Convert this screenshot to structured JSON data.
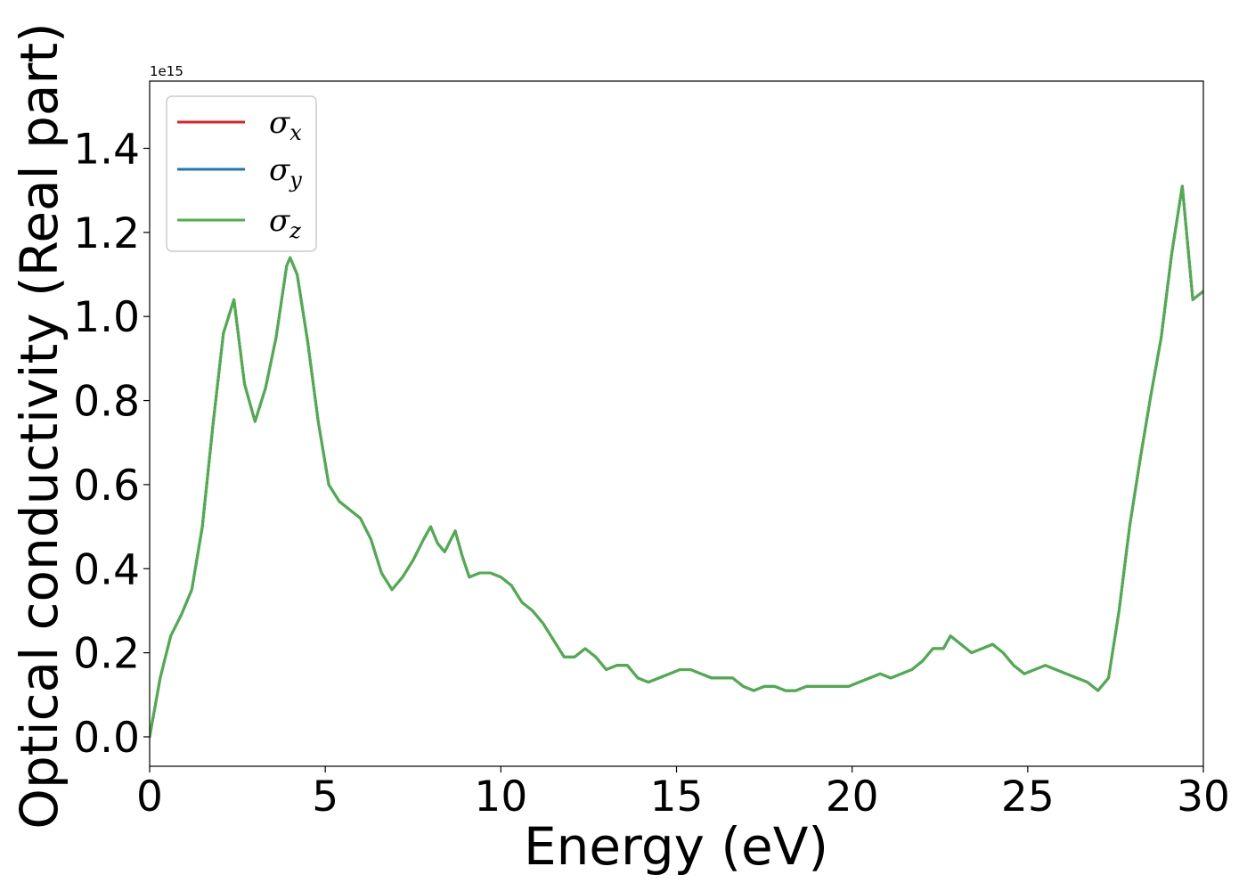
{
  "chart_data": {
    "type": "line",
    "xlabel": "Energy (eV)",
    "ylabel": "Optical conductivity (Real part)",
    "y_offset_label": "1e15",
    "xlim": [
      0,
      30
    ],
    "ylim": [
      -0.07,
      1.56
    ],
    "x_ticks": [
      0,
      5,
      10,
      15,
      20,
      25,
      30
    ],
    "x_tick_labels": [
      "0",
      "5",
      "10",
      "15",
      "20",
      "25",
      "30"
    ],
    "y_ticks": [
      0.0,
      0.2,
      0.4,
      0.6,
      0.8,
      1.0,
      1.2,
      1.4
    ],
    "y_tick_labels": [
      "0.0",
      "0.2",
      "0.4",
      "0.6",
      "0.8",
      "1.0",
      "1.2",
      "1.4"
    ],
    "grid": false,
    "legend_position": "top-left",
    "x": [
      0,
      0.3,
      0.6,
      0.9,
      1.2,
      1.5,
      1.8,
      2.1,
      2.4,
      2.7,
      3.0,
      3.3,
      3.6,
      3.9,
      4.0,
      4.2,
      4.5,
      4.8,
      5.1,
      5.4,
      5.7,
      6.0,
      6.3,
      6.6,
      6.9,
      7.2,
      7.5,
      7.8,
      8.0,
      8.2,
      8.4,
      8.7,
      8.9,
      9.1,
      9.4,
      9.7,
      10.0,
      10.3,
      10.6,
      10.9,
      11.2,
      11.5,
      11.8,
      12.1,
      12.4,
      12.7,
      13.0,
      13.3,
      13.6,
      13.9,
      14.2,
      14.5,
      14.8,
      15.1,
      15.4,
      15.7,
      16.0,
      16.3,
      16.6,
      16.9,
      17.2,
      17.5,
      17.8,
      18.1,
      18.4,
      18.7,
      19.0,
      19.3,
      19.6,
      19.9,
      20.2,
      20.5,
      20.8,
      21.1,
      21.4,
      21.7,
      22.0,
      22.3,
      22.6,
      22.8,
      23.1,
      23.4,
      23.7,
      24.0,
      24.3,
      24.6,
      24.9,
      25.2,
      25.5,
      25.8,
      26.1,
      26.4,
      26.7,
      27.0,
      27.3,
      27.6,
      27.9,
      28.2,
      28.5,
      28.8,
      29.1,
      29.4,
      29.7,
      30.0
    ],
    "series": [
      {
        "name": "σx",
        "color": "#d62728",
        "values": [
          0.0,
          0.14,
          0.24,
          0.29,
          0.35,
          0.5,
          0.74,
          0.96,
          1.04,
          0.84,
          0.75,
          0.83,
          0.95,
          1.12,
          1.14,
          1.1,
          0.94,
          0.75,
          0.6,
          0.56,
          0.54,
          0.52,
          0.47,
          0.39,
          0.35,
          0.38,
          0.42,
          0.47,
          0.5,
          0.46,
          0.44,
          0.49,
          0.43,
          0.38,
          0.39,
          0.39,
          0.38,
          0.36,
          0.32,
          0.3,
          0.27,
          0.23,
          0.19,
          0.19,
          0.21,
          0.19,
          0.16,
          0.17,
          0.17,
          0.14,
          0.13,
          0.14,
          0.15,
          0.16,
          0.16,
          0.15,
          0.14,
          0.14,
          0.14,
          0.12,
          0.11,
          0.12,
          0.12,
          0.11,
          0.11,
          0.12,
          0.12,
          0.12,
          0.12,
          0.12,
          0.13,
          0.14,
          0.15,
          0.14,
          0.15,
          0.16,
          0.18,
          0.21,
          0.21,
          0.24,
          0.22,
          0.2,
          0.21,
          0.22,
          0.2,
          0.17,
          0.15,
          0.16,
          0.17,
          0.16,
          0.15,
          0.14,
          0.13,
          0.11,
          0.14,
          0.3,
          0.5,
          0.66,
          0.81,
          0.95,
          1.15,
          1.31,
          1.04,
          1.06
        ]
      },
      {
        "name": "σy",
        "color": "#1f77b4",
        "values": [
          0.0,
          0.14,
          0.24,
          0.29,
          0.35,
          0.5,
          0.74,
          0.96,
          1.04,
          0.84,
          0.75,
          0.83,
          0.95,
          1.12,
          1.14,
          1.1,
          0.94,
          0.75,
          0.6,
          0.56,
          0.54,
          0.52,
          0.47,
          0.39,
          0.35,
          0.38,
          0.42,
          0.47,
          0.5,
          0.46,
          0.44,
          0.49,
          0.43,
          0.38,
          0.39,
          0.39,
          0.38,
          0.36,
          0.32,
          0.3,
          0.27,
          0.23,
          0.19,
          0.19,
          0.21,
          0.19,
          0.16,
          0.17,
          0.17,
          0.14,
          0.13,
          0.14,
          0.15,
          0.16,
          0.16,
          0.15,
          0.14,
          0.14,
          0.14,
          0.12,
          0.11,
          0.12,
          0.12,
          0.11,
          0.11,
          0.12,
          0.12,
          0.12,
          0.12,
          0.12,
          0.13,
          0.14,
          0.15,
          0.14,
          0.15,
          0.16,
          0.18,
          0.21,
          0.21,
          0.24,
          0.22,
          0.2,
          0.21,
          0.22,
          0.2,
          0.17,
          0.15,
          0.16,
          0.17,
          0.16,
          0.15,
          0.14,
          0.13,
          0.11,
          0.14,
          0.3,
          0.5,
          0.66,
          0.81,
          0.95,
          1.15,
          1.31,
          1.04,
          1.06
        ]
      },
      {
        "name": "σz",
        "color": "#4daf4a",
        "values": [
          0.0,
          0.14,
          0.24,
          0.29,
          0.35,
          0.5,
          0.74,
          0.96,
          1.04,
          0.84,
          0.75,
          0.83,
          0.95,
          1.12,
          1.14,
          1.1,
          0.94,
          0.75,
          0.6,
          0.56,
          0.54,
          0.52,
          0.47,
          0.39,
          0.35,
          0.38,
          0.42,
          0.47,
          0.5,
          0.46,
          0.44,
          0.49,
          0.43,
          0.38,
          0.39,
          0.39,
          0.38,
          0.36,
          0.32,
          0.3,
          0.27,
          0.23,
          0.19,
          0.19,
          0.21,
          0.19,
          0.16,
          0.17,
          0.17,
          0.14,
          0.13,
          0.14,
          0.15,
          0.16,
          0.16,
          0.15,
          0.14,
          0.14,
          0.14,
          0.12,
          0.11,
          0.12,
          0.12,
          0.11,
          0.11,
          0.12,
          0.12,
          0.12,
          0.12,
          0.12,
          0.13,
          0.14,
          0.15,
          0.14,
          0.15,
          0.16,
          0.18,
          0.21,
          0.21,
          0.24,
          0.22,
          0.2,
          0.21,
          0.22,
          0.2,
          0.17,
          0.15,
          0.16,
          0.17,
          0.16,
          0.15,
          0.14,
          0.13,
          0.11,
          0.14,
          0.3,
          0.5,
          0.66,
          0.81,
          0.95,
          1.15,
          1.31,
          1.04,
          1.06
        ]
      }
    ],
    "legend_entries": [
      {
        "base": "σ",
        "sub": "x"
      },
      {
        "base": "σ",
        "sub": "y"
      },
      {
        "base": "σ",
        "sub": "z"
      }
    ]
  }
}
